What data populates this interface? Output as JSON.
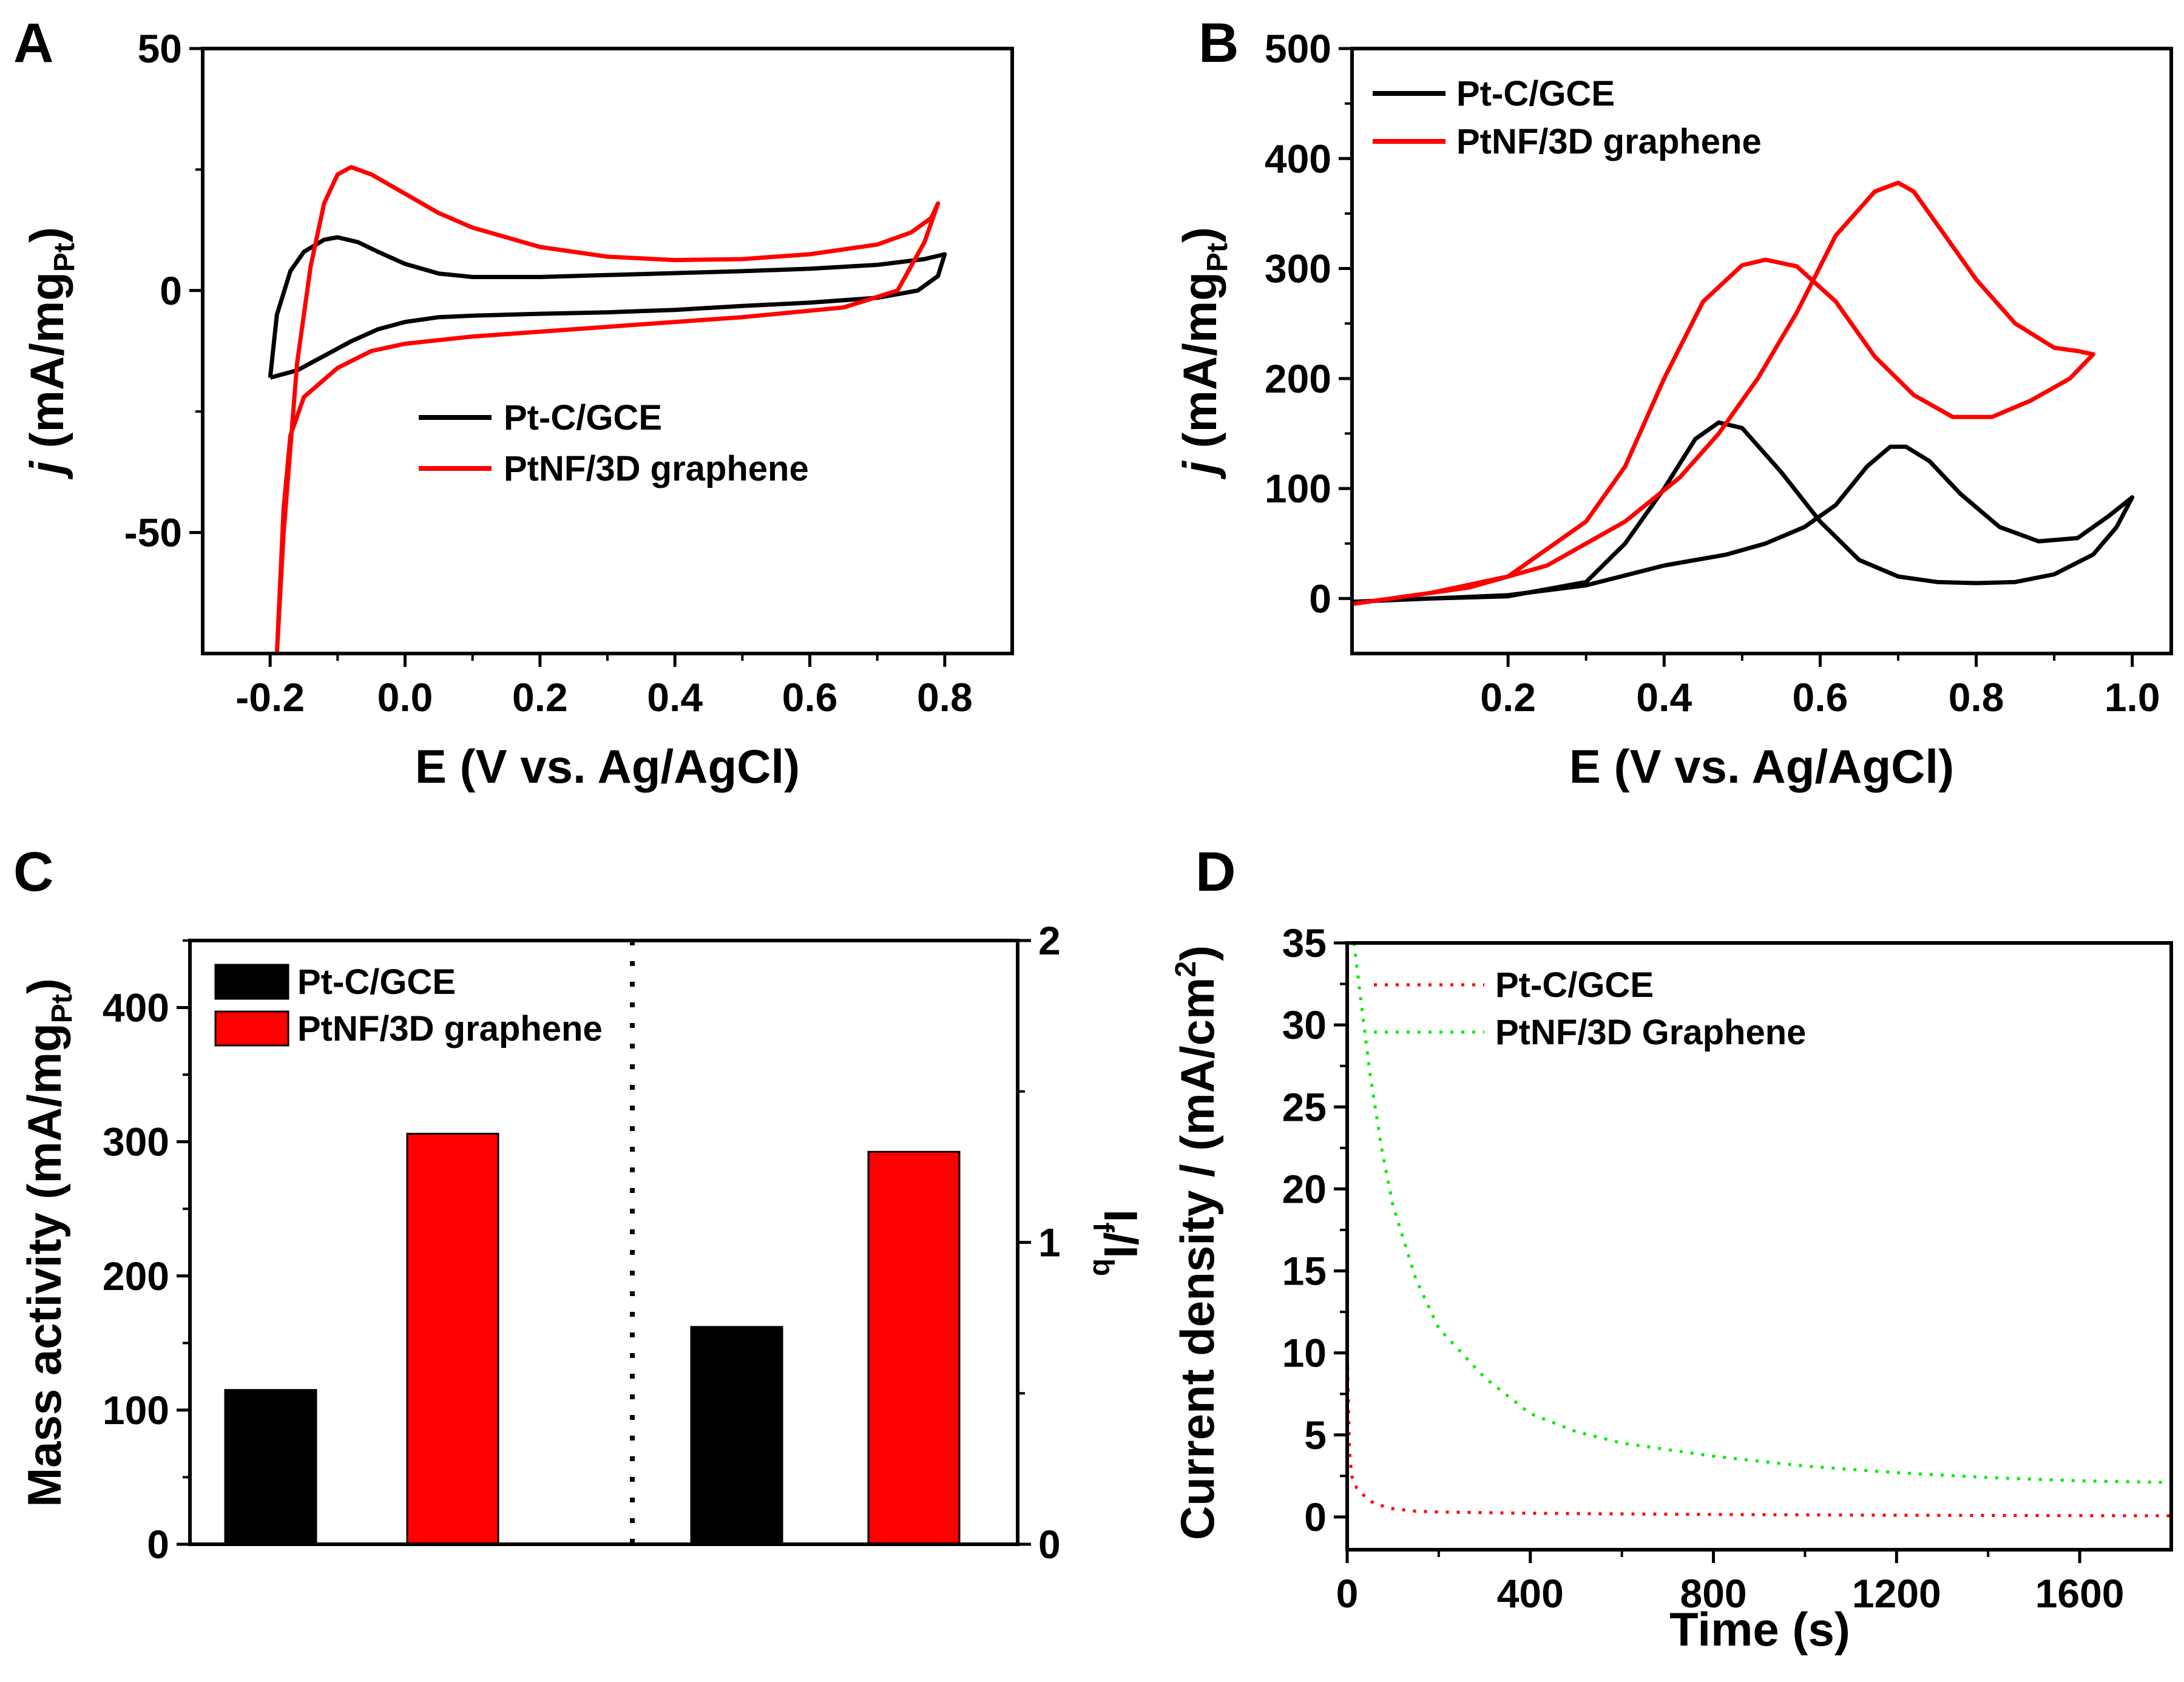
{
  "figure": {
    "panels": [
      {
        "label": "A"
      },
      {
        "label": "B"
      },
      {
        "label": "C"
      },
      {
        "label": "D"
      }
    ]
  },
  "chart_data": [
    {
      "panel": "A",
      "type": "line",
      "xlabel": "E (V vs. Ag/AgCl)",
      "ylabel": {
        "italic_prefix": "j",
        "main": " (mA/mg",
        "sub": "Pt",
        "close": ")"
      },
      "xlim": [
        -0.3,
        0.9
      ],
      "ylim": [
        -75,
        50
      ],
      "xticks": [
        -0.2,
        0.0,
        0.2,
        0.4,
        0.6,
        0.8
      ],
      "xtick_labels": [
        "-0.2",
        "0.0",
        "0.2",
        "0.4",
        "0.6",
        "0.8"
      ],
      "yticks": [
        -50,
        0,
        50
      ],
      "ytick_labels": [
        "-50",
        "0",
        "50"
      ],
      "legend": [
        "Pt-C/GCE",
        "PtNF/3D graphene"
      ],
      "series": [
        {
          "name": "Pt-C/GCE",
          "color": "#000000",
          "points": [
            [
              -0.2,
              -18
            ],
            [
              -0.19,
              -5
            ],
            [
              -0.17,
              4
            ],
            [
              -0.15,
              8
            ],
            [
              -0.12,
              10.5
            ],
            [
              -0.1,
              11
            ],
            [
              -0.07,
              10
            ],
            [
              -0.04,
              8
            ],
            [
              0.0,
              5.5
            ],
            [
              0.05,
              3.5
            ],
            [
              0.1,
              2.8
            ],
            [
              0.2,
              2.8
            ],
            [
              0.3,
              3.2
            ],
            [
              0.4,
              3.6
            ],
            [
              0.5,
              4.0
            ],
            [
              0.6,
              4.5
            ],
            [
              0.7,
              5.3
            ],
            [
              0.77,
              6.5
            ],
            [
              0.8,
              7.5
            ],
            [
              0.79,
              3
            ],
            [
              0.76,
              0
            ],
            [
              0.7,
              -1.5
            ],
            [
              0.6,
              -2.5
            ],
            [
              0.5,
              -3.2
            ],
            [
              0.4,
              -4
            ],
            [
              0.3,
              -4.5
            ],
            [
              0.2,
              -4.8
            ],
            [
              0.1,
              -5.2
            ],
            [
              0.05,
              -5.5
            ],
            [
              0.0,
              -6.5
            ],
            [
              -0.04,
              -8
            ],
            [
              -0.08,
              -10.5
            ],
            [
              -0.12,
              -13.5
            ],
            [
              -0.16,
              -16.5
            ],
            [
              -0.2,
              -18
            ]
          ]
        },
        {
          "name": "PtNF/3D graphene",
          "color": "#ff0000",
          "points": [
            [
              -0.19,
              -75
            ],
            [
              -0.18,
              -50
            ],
            [
              -0.16,
              -15
            ],
            [
              -0.14,
              5
            ],
            [
              -0.12,
              18
            ],
            [
              -0.1,
              24
            ],
            [
              -0.08,
              25.5
            ],
            [
              -0.05,
              24
            ],
            [
              0.0,
              20
            ],
            [
              0.05,
              16
            ],
            [
              0.1,
              13
            ],
            [
              0.2,
              9
            ],
            [
              0.3,
              7
            ],
            [
              0.4,
              6.3
            ],
            [
              0.5,
              6.5
            ],
            [
              0.6,
              7.5
            ],
            [
              0.7,
              9.5
            ],
            [
              0.75,
              12
            ],
            [
              0.78,
              15
            ],
            [
              0.79,
              18
            ],
            [
              0.77,
              10
            ],
            [
              0.73,
              0
            ],
            [
              0.65,
              -3.5
            ],
            [
              0.5,
              -5.5
            ],
            [
              0.4,
              -6.5
            ],
            [
              0.3,
              -7.5
            ],
            [
              0.2,
              -8.5
            ],
            [
              0.1,
              -9.5
            ],
            [
              0.0,
              -11
            ],
            [
              -0.05,
              -12.5
            ],
            [
              -0.1,
              -16
            ],
            [
              -0.15,
              -22
            ],
            [
              -0.17,
              -30
            ],
            [
              -0.18,
              -45
            ],
            [
              -0.185,
              -60
            ],
            [
              -0.19,
              -75
            ]
          ]
        }
      ]
    },
    {
      "panel": "B",
      "type": "line",
      "xlabel": "E (V vs. Ag/AgCl)",
      "ylabel": {
        "italic_prefix": "j",
        "main": " (mA/mg",
        "sub": "Pt",
        "close": ")"
      },
      "xlim": [
        0.0,
        1.05
      ],
      "ylim": [
        -50,
        500
      ],
      "xticks": [
        0.2,
        0.4,
        0.6,
        0.8,
        1.0
      ],
      "xtick_labels": [
        "0.2",
        "0.4",
        "0.6",
        "0.8",
        "1.0"
      ],
      "yticks": [
        0,
        100,
        200,
        300,
        400,
        500
      ],
      "ytick_labels": [
        "0",
        "100",
        "200",
        "300",
        "400",
        "500"
      ],
      "legend": [
        "Pt-C/GCE",
        "PtNF/3D graphene"
      ],
      "series": [
        {
          "name": "Pt-C/GCE",
          "color": "#000000",
          "points": [
            [
              0.0,
              -3
            ],
            [
              0.1,
              0
            ],
            [
              0.2,
              2
            ],
            [
              0.3,
              15
            ],
            [
              0.35,
              50
            ],
            [
              0.4,
              100
            ],
            [
              0.44,
              145
            ],
            [
              0.47,
              160
            ],
            [
              0.5,
              155
            ],
            [
              0.55,
              115
            ],
            [
              0.6,
              70
            ],
            [
              0.65,
              35
            ],
            [
              0.7,
              20
            ],
            [
              0.75,
              15
            ],
            [
              0.8,
              14
            ],
            [
              0.85,
              15
            ],
            [
              0.9,
              22
            ],
            [
              0.95,
              40
            ],
            [
              0.98,
              65
            ],
            [
              1.0,
              92
            ],
            [
              0.97,
              75
            ],
            [
              0.93,
              55
            ],
            [
              0.88,
              52
            ],
            [
              0.83,
              65
            ],
            [
              0.78,
              95
            ],
            [
              0.74,
              125
            ],
            [
              0.71,
              138
            ],
            [
              0.69,
              138
            ],
            [
              0.66,
              120
            ],
            [
              0.62,
              85
            ],
            [
              0.58,
              65
            ],
            [
              0.53,
              50
            ],
            [
              0.48,
              40
            ],
            [
              0.4,
              30
            ],
            [
              0.3,
              12
            ],
            [
              0.2,
              3
            ],
            [
              0.1,
              0
            ],
            [
              0.0,
              -3
            ]
          ]
        },
        {
          "name": "PtNF/3D graphene",
          "color": "#ff0000",
          "points": [
            [
              0.0,
              -5
            ],
            [
              0.1,
              5
            ],
            [
              0.2,
              20
            ],
            [
              0.3,
              70
            ],
            [
              0.35,
              120
            ],
            [
              0.4,
              200
            ],
            [
              0.45,
              270
            ],
            [
              0.5,
              303
            ],
            [
              0.53,
              308
            ],
            [
              0.57,
              302
            ],
            [
              0.62,
              270
            ],
            [
              0.67,
              220
            ],
            [
              0.72,
              185
            ],
            [
              0.77,
              165
            ],
            [
              0.82,
              165
            ],
            [
              0.87,
              180
            ],
            [
              0.92,
              200
            ],
            [
              0.95,
              222
            ],
            [
              0.93,
              225
            ],
            [
              0.9,
              228
            ],
            [
              0.85,
              250
            ],
            [
              0.8,
              290
            ],
            [
              0.75,
              340
            ],
            [
              0.72,
              370
            ],
            [
              0.7,
              378
            ],
            [
              0.67,
              370
            ],
            [
              0.62,
              330
            ],
            [
              0.57,
              260
            ],
            [
              0.52,
              200
            ],
            [
              0.47,
              150
            ],
            [
              0.42,
              110
            ],
            [
              0.35,
              70
            ],
            [
              0.25,
              30
            ],
            [
              0.15,
              10
            ],
            [
              0.05,
              0
            ],
            [
              0.0,
              -5
            ]
          ]
        }
      ]
    },
    {
      "panel": "C",
      "type": "bar",
      "ylabel": {
        "main": "Mass activity (mA/mg",
        "sub": "Pt",
        "close": ")"
      },
      "ylabel_right": {
        "a": "I",
        "a_sub": "f",
        "mid": "/I",
        "b_sub": "b"
      },
      "ylim": [
        0,
        450
      ],
      "ylim_right": [
        0,
        2
      ],
      "yticks": [
        0,
        100,
        200,
        300,
        400
      ],
      "ytick_labels": [
        "0",
        "100",
        "200",
        "300",
        "400"
      ],
      "yticks_right": [
        0,
        1,
        2
      ],
      "ytick_labels_right": [
        "0",
        "1",
        "2"
      ],
      "legend": [
        "Pt-C/GCE",
        "PtNF/3D graphene"
      ],
      "colors": [
        "#000000",
        "#ff0000"
      ],
      "groups": [
        {
          "metric": "Mass activity",
          "axis": "left",
          "values": [
            115,
            306
          ]
        },
        {
          "metric": "If/Ib",
          "axis": "right",
          "values": [
            0.72,
            1.3
          ]
        }
      ]
    },
    {
      "panel": "D",
      "type": "line",
      "xlabel": "Time (s)",
      "ylabel": {
        "main": "Current density / (mA/cm",
        "sup": "2",
        "close": ")"
      },
      "xlim": [
        0,
        1800
      ],
      "ylim": [
        -2,
        35
      ],
      "xticks": [
        0,
        400,
        800,
        1200,
        1600
      ],
      "xtick_labels": [
        "0",
        "400",
        "800",
        "1200",
        "1600"
      ],
      "yticks": [
        0,
        5,
        10,
        15,
        20,
        25,
        30,
        35
      ],
      "ytick_labels": [
        "0",
        "5",
        "10",
        "15",
        "20",
        "25",
        "30",
        "35"
      ],
      "legend": [
        "Pt-C/GCE",
        "PtNF/3D Graphene"
      ],
      "series": [
        {
          "name": "Pt-C/GCE",
          "color": "#ff0000",
          "style": "dotted",
          "points": [
            [
              0,
              10.5
            ],
            [
              5,
              4
            ],
            [
              10,
              2.5
            ],
            [
              20,
              1.8
            ],
            [
              40,
              1.2
            ],
            [
              60,
              0.8
            ],
            [
              100,
              0.5
            ],
            [
              150,
              0.35
            ],
            [
              200,
              0.3
            ],
            [
              400,
              0.22
            ],
            [
              800,
              0.15
            ],
            [
              1200,
              0.1
            ],
            [
              1600,
              0.08
            ],
            [
              1800,
              0.07
            ]
          ]
        },
        {
          "name": "PtNF/3D Graphene",
          "color": "#00ee00",
          "style": "dotted",
          "points": [
            [
              15,
              35
            ],
            [
              30,
              31.5
            ],
            [
              50,
              27
            ],
            [
              75,
              22.5
            ],
            [
              100,
              19
            ],
            [
              150,
              14.5
            ],
            [
              200,
              11.5
            ],
            [
              300,
              8.5
            ],
            [
              400,
              6.3
            ],
            [
              500,
              5.2
            ],
            [
              600,
              4.5
            ],
            [
              800,
              3.7
            ],
            [
              1000,
              3.1
            ],
            [
              1200,
              2.7
            ],
            [
              1400,
              2.4
            ],
            [
              1600,
              2.2
            ],
            [
              1800,
              2.1
            ]
          ]
        }
      ]
    }
  ]
}
